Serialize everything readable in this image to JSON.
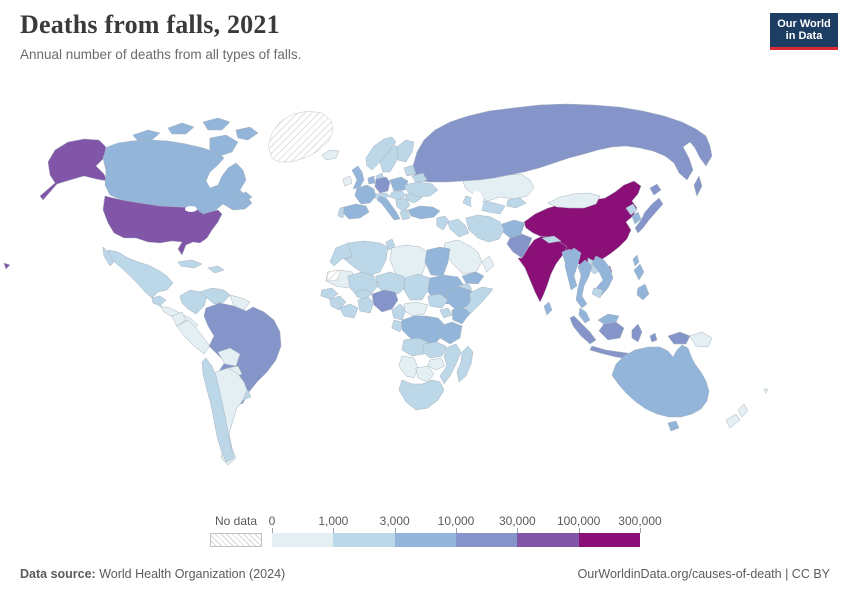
{
  "header": {
    "title": "Deaths from falls, 2021",
    "subtitle": "Annual number of deaths from all types of falls.",
    "logo": {
      "line1": "Our World",
      "line2": "in Data",
      "bg_color": "#1d3d63",
      "accent_color": "#dc2830"
    }
  },
  "legend": {
    "no_data_label": "No data",
    "tick_labels": [
      "0",
      "1,000",
      "3,000",
      "10,000",
      "30,000",
      "100,000",
      "300,000"
    ],
    "palette": [
      "#e4eff4",
      "#bcd7e8",
      "#92b5d9",
      "#8695c9",
      "#8156a8",
      "#8a1078"
    ]
  },
  "footer": {
    "source_label": "Data source:",
    "source_value": " World Health Organization (2024)",
    "attribution": "OurWorldinData.org/causes-of-death | CC BY"
  },
  "chart_data": {
    "type": "choropleth",
    "title": "Deaths from falls, 2021",
    "subtitle": "Annual number of deaths from all types of falls.",
    "bin_labels": [
      "0-1,000",
      "1,000-3,000",
      "3,000-10,000",
      "10,000-30,000",
      "30,000-100,000",
      "100,000-300,000"
    ],
    "bin_thresholds": [
      0,
      1000,
      3000,
      10000,
      30000,
      100000,
      300000
    ],
    "no_data_regions": [
      "Greenland",
      "Western Sahara"
    ],
    "countries": {
      "greenland": {
        "label": "Greenland",
        "bin": "nodata"
      },
      "western-sahara": {
        "label": "Western Sahara",
        "bin": "nodata"
      },
      "united-states": {
        "label": "United States",
        "bin": 4
      },
      "canada": {
        "label": "Canada",
        "bin": 2
      },
      "mexico": {
        "label": "Mexico",
        "bin": 1
      },
      "guatemala": {
        "label": "Guatemala",
        "bin": 1
      },
      "central-america": {
        "label": "Central America",
        "bin": 0
      },
      "cuba": {
        "label": "Cuba",
        "bin": 1
      },
      "hispaniola": {
        "label": "Haiti / Dominican Republic",
        "bin": 1
      },
      "colombia": {
        "label": "Colombia",
        "bin": 1
      },
      "venezuela": {
        "label": "Venezuela",
        "bin": 1
      },
      "guyana": {
        "label": "Guianas",
        "bin": 0
      },
      "ecuador": {
        "label": "Ecuador",
        "bin": 0
      },
      "peru": {
        "label": "Peru",
        "bin": 0
      },
      "bolivia": {
        "label": "Bolivia",
        "bin": 0
      },
      "paraguay": {
        "label": "Paraguay",
        "bin": 0
      },
      "chile": {
        "label": "Chile",
        "bin": 1
      },
      "argentina": {
        "label": "Argentina",
        "bin": 0
      },
      "uruguay": {
        "label": "Uruguay",
        "bin": 1
      },
      "brazil": {
        "label": "Brazil",
        "bin": 3
      },
      "iceland": {
        "label": "Iceland",
        "bin": 0
      },
      "ireland": {
        "label": "Ireland",
        "bin": 0
      },
      "united-kingdom": {
        "label": "United Kingdom",
        "bin": 2
      },
      "norway": {
        "label": "Norway",
        "bin": 1
      },
      "sweden": {
        "label": "Sweden",
        "bin": 1
      },
      "finland": {
        "label": "Finland",
        "bin": 1
      },
      "denmark": {
        "label": "Denmark",
        "bin": 1
      },
      "baltics": {
        "label": "Baltic states",
        "bin": 1
      },
      "belarus": {
        "label": "Belarus",
        "bin": 1
      },
      "poland": {
        "label": "Poland",
        "bin": 2
      },
      "germany": {
        "label": "Germany",
        "bin": 3
      },
      "netherlands-belgium": {
        "label": "Netherlands / Belgium",
        "bin": 2
      },
      "france": {
        "label": "France",
        "bin": 2
      },
      "spain": {
        "label": "Spain",
        "bin": 2
      },
      "portugal": {
        "label": "Portugal",
        "bin": 1
      },
      "italy": {
        "label": "Italy",
        "bin": 2
      },
      "switzerland-austria": {
        "label": "Switzerland / Austria",
        "bin": 1
      },
      "czech-hungary": {
        "label": "Czechia / Hungary",
        "bin": 1
      },
      "balkans": {
        "label": "Balkans",
        "bin": 1
      },
      "greece": {
        "label": "Greece",
        "bin": 1
      },
      "romania": {
        "label": "Romania",
        "bin": 1
      },
      "ukraine": {
        "label": "Ukraine",
        "bin": 1
      },
      "russia": {
        "label": "Russia",
        "bin": 3
      },
      "kazakhstan": {
        "label": "Kazakhstan",
        "bin": 0
      },
      "uzbekistan-turkmenistan": {
        "label": "Uzbekistan / Turkmenistan",
        "bin": 1
      },
      "kyrgyzstan-tajikistan": {
        "label": "Kyrgyzstan / Tajikistan",
        "bin": 1
      },
      "turkey": {
        "label": "Turkey",
        "bin": 2
      },
      "syria": {
        "label": "Syria / Levant",
        "bin": 1
      },
      "iraq": {
        "label": "Iraq",
        "bin": 1
      },
      "iran": {
        "label": "Iran",
        "bin": 1
      },
      "saudi-arabia": {
        "label": "Saudi Arabia",
        "bin": 0
      },
      "yemen": {
        "label": "Yemen",
        "bin": 2
      },
      "oman": {
        "label": "Oman",
        "bin": 0
      },
      "afghanistan": {
        "label": "Afghanistan",
        "bin": 2
      },
      "pakistan": {
        "label": "Pakistan",
        "bin": 3
      },
      "india": {
        "label": "India",
        "bin": 5
      },
      "nepal": {
        "label": "Nepal",
        "bin": 1
      },
      "bangladesh": {
        "label": "Bangladesh",
        "bin": 2
      },
      "sri-lanka": {
        "label": "Sri Lanka",
        "bin": 2
      },
      "china": {
        "label": "China",
        "bin": 5
      },
      "mongolia": {
        "label": "Mongolia",
        "bin": 0
      },
      "north-korea": {
        "label": "North Korea",
        "bin": 1
      },
      "south-korea": {
        "label": "South Korea",
        "bin": 2
      },
      "japan": {
        "label": "Japan",
        "bin": 3
      },
      "taiwan": {
        "label": "Taiwan",
        "bin": 2
      },
      "myanmar": {
        "label": "Myanmar",
        "bin": 2
      },
      "thailand": {
        "label": "Thailand",
        "bin": 2
      },
      "laos": {
        "label": "Laos",
        "bin": 1
      },
      "vietnam": {
        "label": "Vietnam",
        "bin": 2
      },
      "cambodia": {
        "label": "Cambodia",
        "bin": 1
      },
      "malaysia": {
        "label": "Malaysia",
        "bin": 2
      },
      "indonesia": {
        "label": "Indonesia",
        "bin": 3
      },
      "philippines": {
        "label": "Philippines",
        "bin": 2
      },
      "papua-new-guinea": {
        "label": "Papua New Guinea",
        "bin": 0
      },
      "australia": {
        "label": "Australia",
        "bin": 2
      },
      "new-zealand": {
        "label": "New Zealand",
        "bin": 0
      },
      "fiji": {
        "label": "Fiji",
        "bin": 0
      },
      "morocco": {
        "label": "Morocco",
        "bin": 1
      },
      "algeria": {
        "label": "Algeria",
        "bin": 1
      },
      "tunisia": {
        "label": "Tunisia",
        "bin": 1
      },
      "libya": {
        "label": "Libya",
        "bin": 0
      },
      "egypt": {
        "label": "Egypt",
        "bin": 2
      },
      "mauritania": {
        "label": "Mauritania",
        "bin": 0
      },
      "mali": {
        "label": "Mali",
        "bin": 1
      },
      "niger": {
        "label": "Niger",
        "bin": 1
      },
      "chad": {
        "label": "Chad",
        "bin": 1
      },
      "sudan": {
        "label": "Sudan",
        "bin": 2
      },
      "south-sudan": {
        "label": "South Sudan",
        "bin": 1
      },
      "eritrea": {
        "label": "Eritrea / Djibouti",
        "bin": 1
      },
      "senegal": {
        "label": "Senegal",
        "bin": 1
      },
      "guinea": {
        "label": "Guinea",
        "bin": 1
      },
      "ivory-coast": {
        "label": "Cote d'Ivoire / Liberia",
        "bin": 1
      },
      "ghana": {
        "label": "Ghana / Togo / Benin",
        "bin": 1
      },
      "burkina-faso": {
        "label": "Burkina Faso",
        "bin": 1
      },
      "nigeria": {
        "label": "Nigeria",
        "bin": 3
      },
      "cameroon": {
        "label": "Cameroon",
        "bin": 1
      },
      "central-african-republic": {
        "label": "Central African Republic",
        "bin": 0
      },
      "ethiopia": {
        "label": "Ethiopia",
        "bin": 2
      },
      "somalia": {
        "label": "Somalia",
        "bin": 1
      },
      "uganda": {
        "label": "Uganda",
        "bin": 1
      },
      "kenya": {
        "label": "Kenya",
        "bin": 2
      },
      "drc": {
        "label": "Democratic Republic of Congo",
        "bin": 2
      },
      "gabon-congo": {
        "label": "Gabon / Congo",
        "bin": 1
      },
      "tanzania": {
        "label": "Tanzania",
        "bin": 2
      },
      "angola": {
        "label": "Angola",
        "bin": 1
      },
      "zambia": {
        "label": "Zambia",
        "bin": 1
      },
      "mozambique": {
        "label": "Mozambique",
        "bin": 1
      },
      "zimbabwe": {
        "label": "Zimbabwe",
        "bin": 0
      },
      "namibia": {
        "label": "Namibia",
        "bin": 0
      },
      "botswana": {
        "label": "Botswana",
        "bin": 0
      },
      "south-africa": {
        "label": "South Africa",
        "bin": 1
      },
      "madagascar": {
        "label": "Madagascar",
        "bin": 1
      }
    }
  }
}
